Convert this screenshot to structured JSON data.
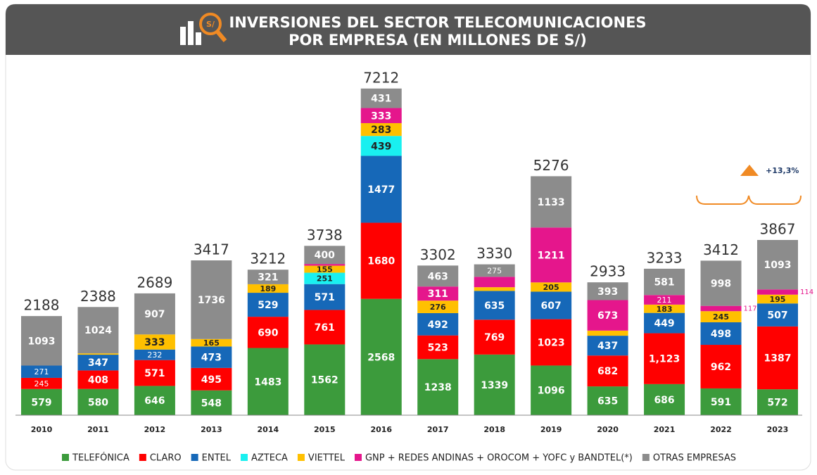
{
  "chart_data": {
    "type": "stacked_bar",
    "title": [
      "INVERSIONES DEL SECTOR TELECOMUNICACIONES",
      "POR EMPRESA (EN MILLONES DE S/)"
    ],
    "annotation": "+13,3%",
    "categories": [
      "2010",
      "2011",
      "2012",
      "2013",
      "2014",
      "2015",
      "2016",
      "2017",
      "2018",
      "2019",
      "2020",
      "2021",
      "2022",
      "2023"
    ],
    "totals": [
      2188,
      2388,
      2689,
      3417,
      3212,
      3738,
      7212,
      3302,
      3330,
      5276,
      2933,
      3233,
      3412,
      3867
    ],
    "ylim": [
      0,
      8000
    ],
    "series": [
      {
        "name": "TELEFÓNICA",
        "color": "#3c9b3c",
        "values": [
          579,
          580,
          646,
          548,
          1483,
          1562,
          2568,
          1238,
          1339,
          1096,
          635,
          686,
          591,
          572
        ],
        "value_labels": [
          "579",
          "580",
          "646",
          "548",
          "1483",
          "1562",
          "2568",
          "1238",
          "1339",
          "1096",
          "635",
          "686",
          "591",
          "572"
        ]
      },
      {
        "name": "CLARO",
        "color": "#ff0000",
        "values": [
          245,
          408,
          571,
          495,
          690,
          761,
          1680,
          523,
          769,
          1023,
          682,
          1123,
          962,
          1387
        ],
        "value_labels": [
          "245",
          "408",
          "571",
          "495",
          "690",
          "761",
          "1680",
          "523",
          "769",
          "1023",
          "682",
          "1,123",
          "962",
          "1387"
        ]
      },
      {
        "name": "ENTEL",
        "color": "#1668b8",
        "values": [
          271,
          347,
          232,
          473,
          529,
          571,
          1477,
          492,
          635,
          607,
          437,
          449,
          498,
          507
        ],
        "value_labels": [
          "271",
          "347",
          "232",
          "473",
          "529",
          "571",
          "1477",
          "492",
          "635",
          "607",
          "437",
          "449",
          "498",
          "507"
        ]
      },
      {
        "name": "AZTECA",
        "color": "#19f0f0",
        "values": [
          null,
          null,
          null,
          null,
          null,
          251,
          439,
          null,
          null,
          null,
          null,
          null,
          null,
          null
        ],
        "value_labels": [
          null,
          null,
          null,
          null,
          null,
          "251",
          "439",
          null,
          null,
          null,
          null,
          null,
          null,
          null
        ]
      },
      {
        "name": "VIETTEL",
        "color": "#ffc000",
        "values": [
          null,
          29,
          333,
          165,
          189,
          155,
          283,
          276,
          82,
          205,
          113,
          183,
          245,
          195
        ],
        "value_labels": [
          null,
          null,
          "333",
          "165",
          "189",
          "155",
          "283",
          "276",
          null,
          "205",
          null,
          "183",
          "245",
          "195"
        ]
      },
      {
        "name": "GNP + REDES ANDINAS + OROCOM + YOFC y BANDTEL(*)",
        "color": "#e5168c",
        "values": [
          null,
          null,
          null,
          null,
          null,
          38,
          333,
          311,
          230,
          1211,
          673,
          211,
          117,
          114
        ],
        "value_labels": [
          null,
          null,
          null,
          null,
          null,
          null,
          "333",
          "311",
          null,
          "1211",
          "673",
          "211",
          "117",
          "114"
        ]
      },
      {
        "name": "OTRAS EMPRESAS",
        "color": "#8c8c8c",
        "values": [
          1093,
          1024,
          907,
          1736,
          321,
          400,
          431,
          463,
          275,
          1133,
          393,
          581,
          998,
          1093
        ],
        "value_labels": [
          "1093",
          "1024",
          "907",
          "1736",
          "321",
          "400",
          "431",
          "463",
          "275",
          "1133",
          "393",
          "581",
          "998",
          "1093"
        ]
      }
    ]
  }
}
